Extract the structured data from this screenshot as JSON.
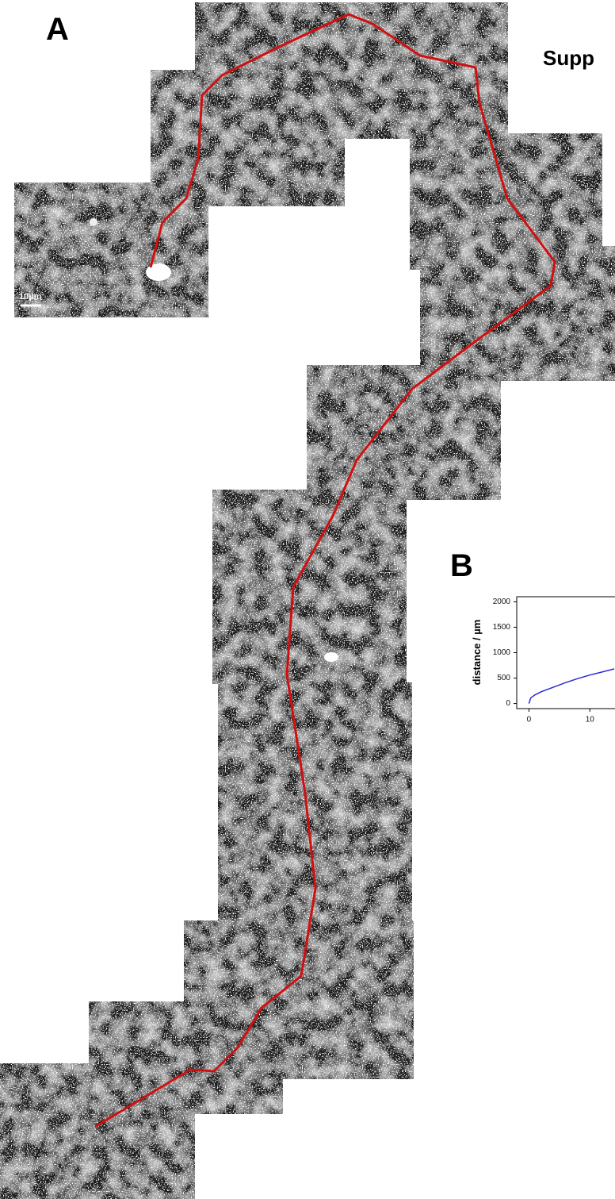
{
  "panel_a": {
    "label": "A",
    "scale_bar": "10µm"
  },
  "title_fragment": "Supp",
  "panel_b": {
    "label": "B"
  },
  "chart_data": {
    "type": "line",
    "y_label": "distance / µm",
    "x": [
      0,
      0.3,
      1,
      2,
      4,
      6,
      8,
      10,
      12,
      14
    ],
    "series": [
      {
        "color": "#2a2ad6",
        "values": [
          0,
          110,
          170,
          230,
          320,
          410,
          490,
          560,
          620,
          680
        ]
      }
    ],
    "xlim": [
      -2,
      14
    ],
    "ylim": [
      -100,
      2100
    ],
    "xticks": [
      0,
      10
    ],
    "yticks": [
      0,
      500,
      1000,
      1500,
      2000
    ]
  }
}
